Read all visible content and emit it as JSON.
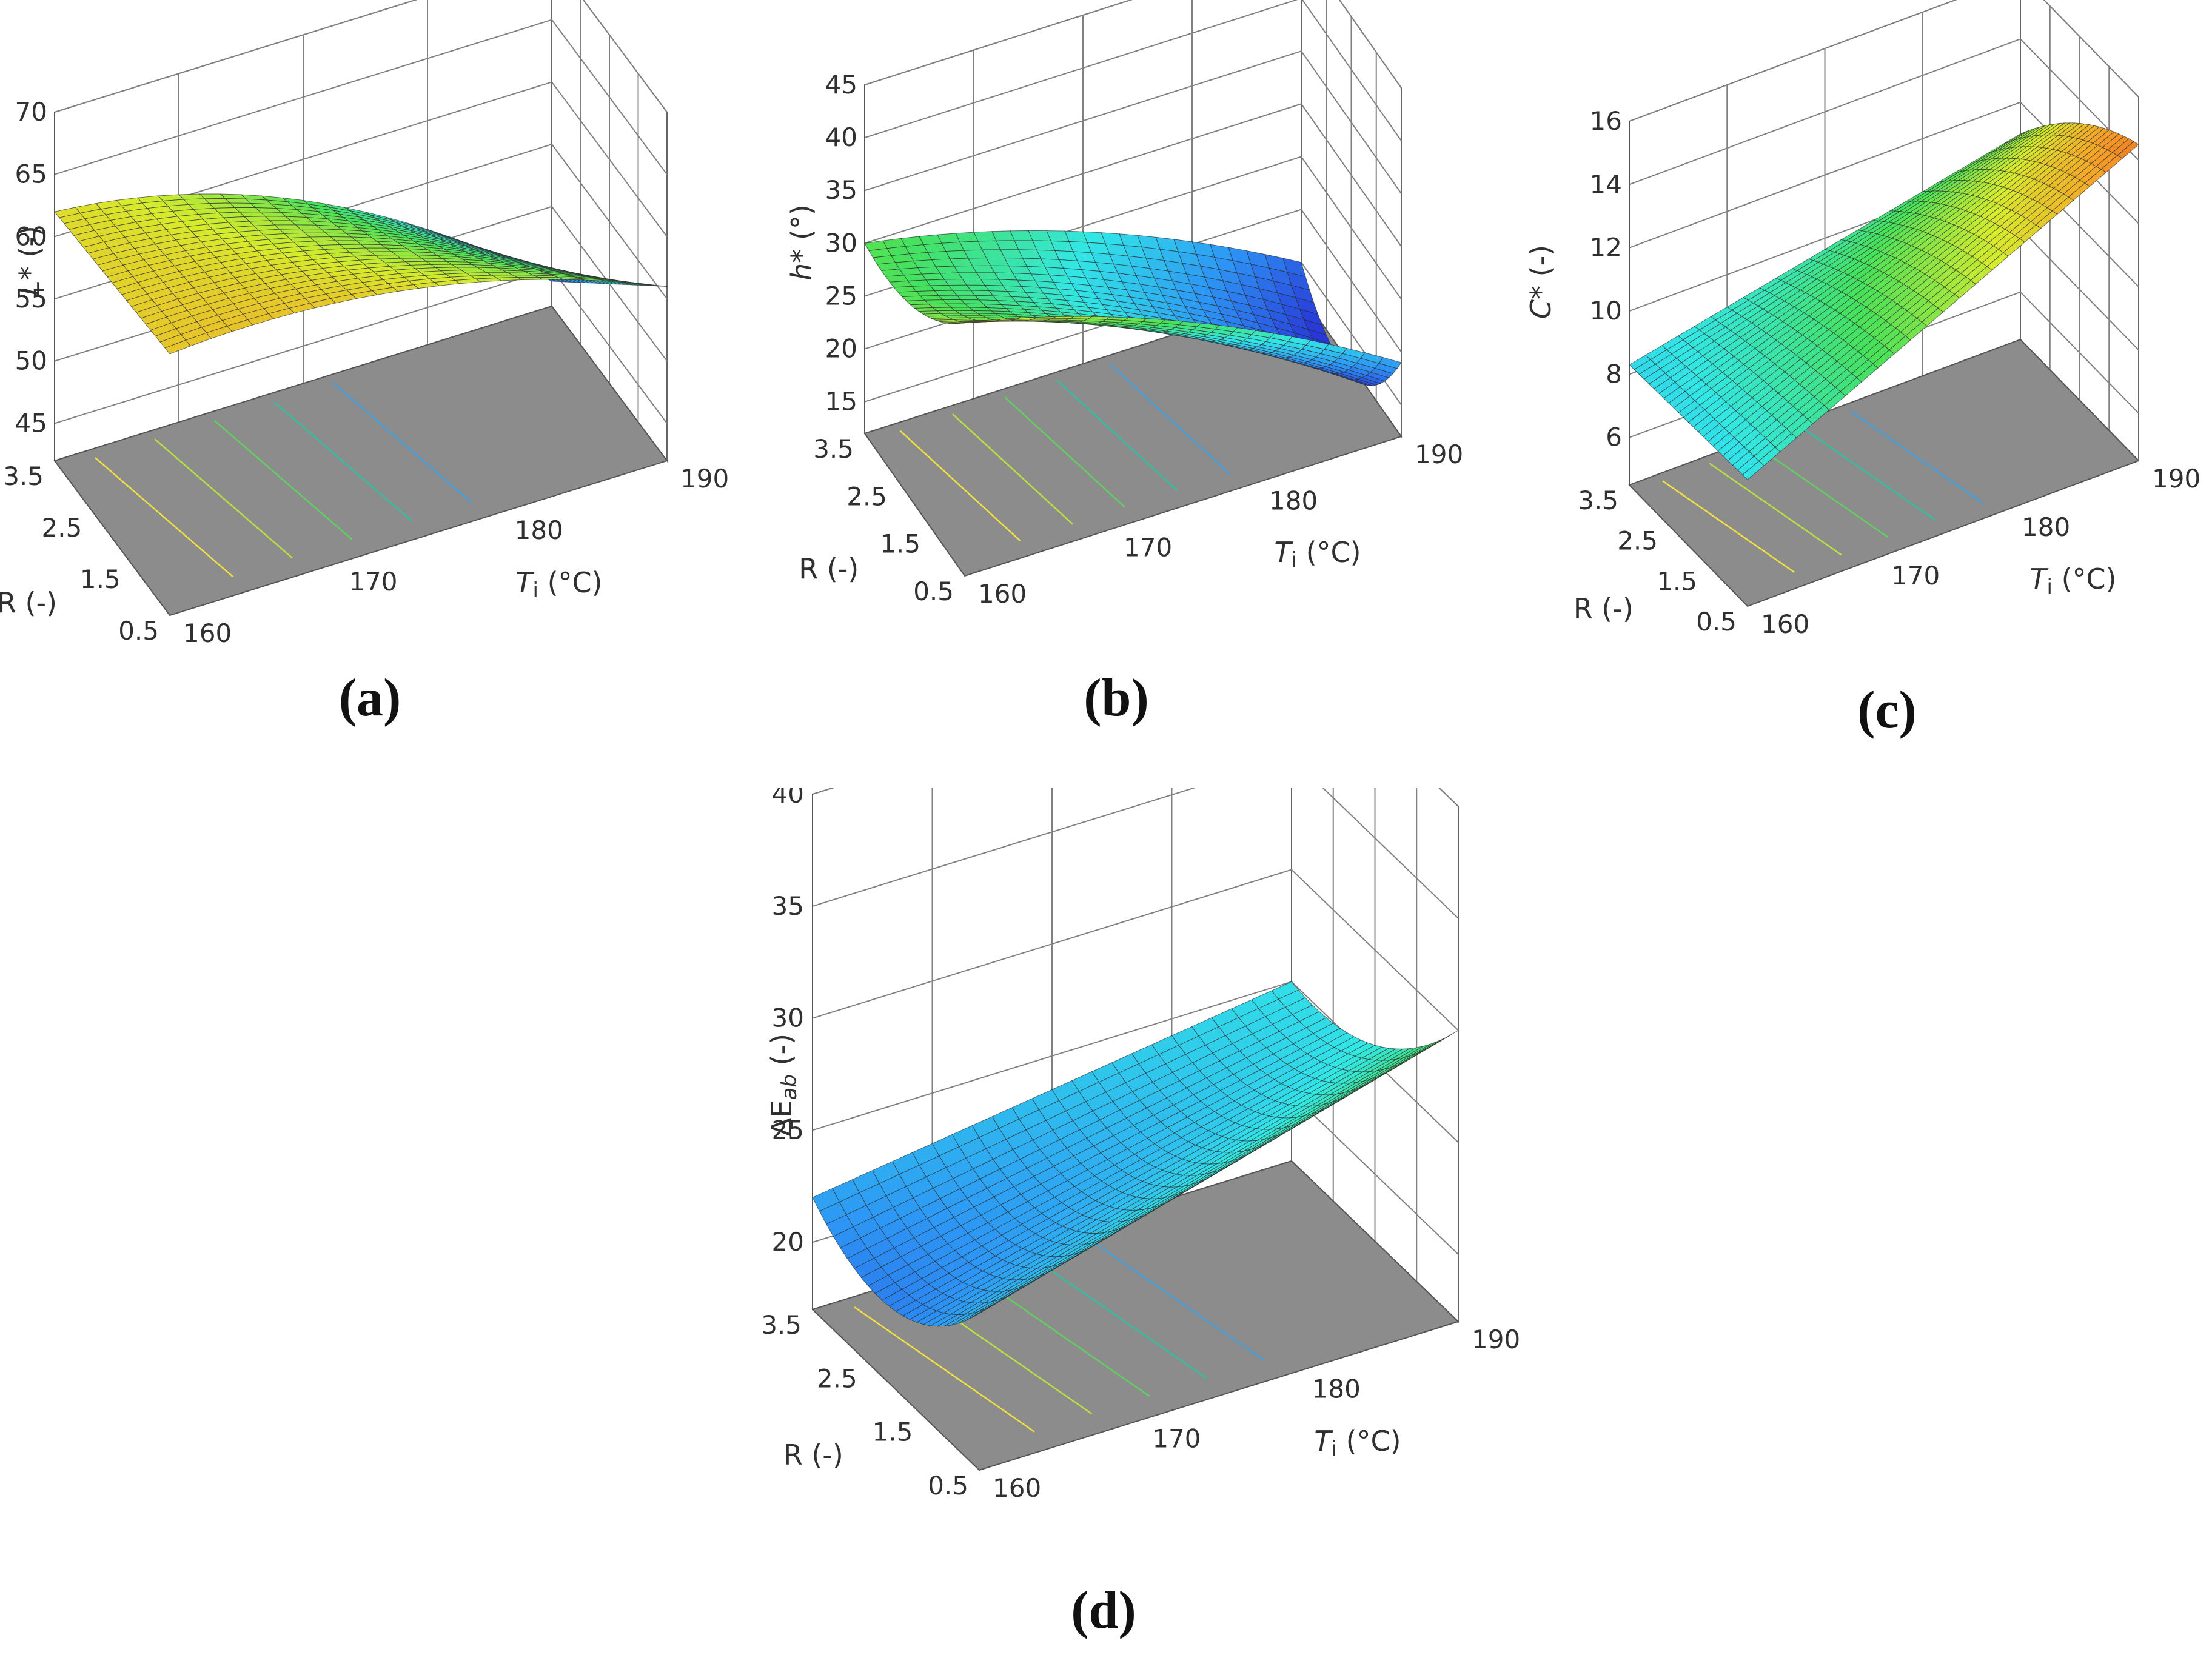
{
  "chart_data": [
    {
      "id": "a",
      "type": "surface3d",
      "panel_label": "(a)",
      "zlabel": "L* (-)",
      "zlabel_parts": {
        "symbol": "L",
        "rest": "* (-)"
      },
      "xlabel": "R (-)",
      "ylabel": "Ti (°C)",
      "ylabel_parts": {
        "symbol": "T",
        "sub": "i",
        "rest": " (°C)"
      },
      "x_ticks": [
        "0.5",
        "1.5",
        "2.5",
        "3.5"
      ],
      "y_ticks": [
        "160",
        "170",
        "180",
        "190"
      ],
      "z_ticks": [
        "45",
        "50",
        "55",
        "60",
        "65",
        "70"
      ],
      "xlim": [
        0.5,
        3.5
      ],
      "ylim": [
        160,
        190
      ],
      "zlim": [
        42,
        70
      ],
      "z_at_corners": {
        "R3.5_T160": 62,
        "R0.5_T160": 63,
        "R3.5_T190": 46,
        "R0.5_T190": 56
      },
      "surface_peak": 66,
      "colormap": "rainbow"
    },
    {
      "id": "b",
      "type": "surface3d",
      "panel_label": "(b)",
      "zlabel": "h* (°)",
      "zlabel_parts": {
        "symbol": "h",
        "rest": "* (°)"
      },
      "xlabel": "R (-)",
      "ylabel": "Ti (°C)",
      "ylabel_parts": {
        "symbol": "T",
        "sub": "i",
        "rest": " (°C)"
      },
      "x_ticks": [
        "0.5",
        "1.5",
        "2.5",
        "3.5"
      ],
      "y_ticks": [
        "160",
        "170",
        "180",
        "190"
      ],
      "z_ticks": [
        "15",
        "20",
        "25",
        "30",
        "35",
        "40",
        "45"
      ],
      "xlim": [
        0.5,
        3.5
      ],
      "ylim": [
        160,
        190
      ],
      "zlim": [
        12,
        45
      ],
      "z_at_corners": {
        "R3.5_T160": 30,
        "R0.5_T160": 36,
        "R3.5_T190": 15,
        "R0.5_T190": 19
      },
      "colormap": "rainbow"
    },
    {
      "id": "c",
      "type": "surface3d",
      "panel_label": "(c)",
      "zlabel": "C* (-)",
      "zlabel_parts": {
        "symbol": "C",
        "rest": "* (-)"
      },
      "xlabel": "R (-)",
      "ylabel": "Ti (°C)",
      "ylabel_parts": {
        "symbol": "T",
        "sub": "i",
        "rest": " (°C)"
      },
      "x_ticks": [
        "0.5",
        "1.5",
        "2.5",
        "3.5"
      ],
      "y_ticks": [
        "160",
        "170",
        "180",
        "190"
      ],
      "z_ticks": [
        "6",
        "8",
        "10",
        "12",
        "14",
        "16"
      ],
      "xlim": [
        0.5,
        3.5
      ],
      "ylim": [
        160,
        190
      ],
      "zlim": [
        4.5,
        16
      ],
      "z_at_corners": {
        "R3.5_T160": 8.3,
        "R0.5_T160": 8.5,
        "R3.5_T190": 11.0,
        "R0.5_T190": 14.5
      },
      "colormap": "rainbow"
    },
    {
      "id": "d",
      "type": "surface3d",
      "panel_label": "(d)",
      "zlabel": "ΔEab (-)",
      "zlabel_parts": {
        "symbol": "ΔE",
        "sub": "ab",
        "rest": " (-)"
      },
      "xlabel": "R (-)",
      "ylabel": "Ti (°C)",
      "ylabel_parts": {
        "symbol": "T",
        "sub": "i",
        "rest": " (°C)"
      },
      "x_ticks": [
        "0.5",
        "1.5",
        "2.5",
        "3.5"
      ],
      "y_ticks": [
        "160",
        "170",
        "180",
        "190"
      ],
      "z_ticks": [
        "20",
        "25",
        "30",
        "35",
        "40"
      ],
      "xlim": [
        0.5,
        3.5
      ],
      "ylim": [
        160,
        190
      ],
      "zlim": [
        17,
        40
      ],
      "z_at_corners": {
        "R3.5_T160": 22,
        "R0.5_T160": 24,
        "R3.5_T190": 25,
        "R0.5_T190": 30
      },
      "colormap": "rainbow"
    }
  ]
}
